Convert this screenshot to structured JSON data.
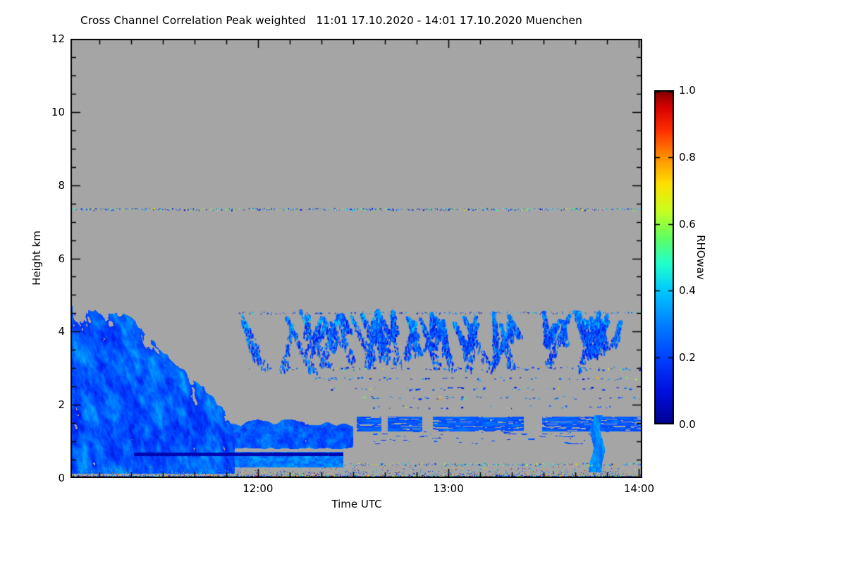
{
  "figure": {
    "background": "#ffffff",
    "axis_color": "#000000"
  },
  "chart_data": {
    "type": "heatmap",
    "title_full": "Cross Channel Correlation Peak weighted   11:01 17.10.2020 - 14:01 17.10.2020 Muenchen",
    "title_left": "Cross Channel Correlation Peak weighted",
    "title_right": "11:01 17.10.2020 - 14:01 17.10.2020 Muenchen",
    "station": "Muenchen",
    "time_start": "11:01 17.10.2020",
    "time_end": "14:01 17.10.2020",
    "xlabel": "Time UTC",
    "ylabel": "Height km",
    "colorbar_label": "RHOwav",
    "x_range_hours": [
      11.0167,
      14.0167
    ],
    "y_range_km": [
      0,
      12
    ],
    "x_ticks": [
      {
        "hour": 12,
        "label": "12:00"
      },
      {
        "hour": 13,
        "label": "13:00"
      },
      {
        "hour": 14,
        "label": "14:00"
      }
    ],
    "y_ticks": [
      0,
      2,
      4,
      6,
      8,
      10,
      12
    ],
    "colorbar_ticks": [
      "0.0",
      "0.2",
      "0.4",
      "0.6",
      "0.8",
      "1.0"
    ],
    "colorbar_range": [
      0.0,
      1.0
    ],
    "no_data_color": "#a5a5a5",
    "colormap_stops": [
      [
        0.0,
        "#00008f"
      ],
      [
        0.1,
        "#0010e0"
      ],
      [
        0.2,
        "#0040ff"
      ],
      [
        0.3,
        "#0080ff"
      ],
      [
        0.4,
        "#00c8ff"
      ],
      [
        0.48,
        "#20ffd0"
      ],
      [
        0.56,
        "#60ff60"
      ],
      [
        0.64,
        "#c8ff20"
      ],
      [
        0.72,
        "#ffe000"
      ],
      [
        0.8,
        "#ff9000"
      ],
      [
        0.88,
        "#ff3000"
      ],
      [
        0.95,
        "#d80000"
      ],
      [
        1.0,
        "#7f0000"
      ]
    ],
    "features": {
      "left_cloud": {
        "t": [
          11.02,
          11.88
        ],
        "flat_top_until": 11.3,
        "top_km": 4.55,
        "top_slope": 5.2,
        "bottom_km": 0.12,
        "value": [
          0.1,
          0.38
        ]
      },
      "mid_band": {
        "t": [
          11.55,
          12.5
        ],
        "h": [
          0.78,
          1.62
        ],
        "value": [
          0.12,
          0.36
        ]
      },
      "low_band": {
        "t": [
          11.33,
          12.45
        ],
        "h": [
          0.28,
          0.72
        ],
        "value": [
          0.18,
          0.42
        ]
      },
      "dark_line": {
        "t": [
          11.35,
          12.45
        ],
        "h": [
          0.6,
          0.7
        ],
        "value": 0.04
      },
      "right_band": {
        "t": [
          12.52,
          14.02
        ],
        "h": [
          1.28,
          1.68
        ],
        "value": [
          0.12,
          0.34
        ]
      },
      "plume": {
        "t_center": 13.78,
        "half_width": 0.028,
        "h": [
          0.15,
          1.72
        ],
        "value": [
          0.2,
          0.4
        ]
      },
      "upper_streaks": {
        "t": [
          11.85,
          14.0
        ],
        "h_top": [
          4.2,
          4.62
        ],
        "length_km": [
          0.5,
          1.6
        ],
        "count": 64,
        "value": [
          0.1,
          0.4
        ]
      },
      "speckle_lines": [
        {
          "h": 7.35,
          "t": [
            11.02,
            14.02
          ],
          "density": 0.55,
          "value": [
            0.05,
            0.75
          ]
        },
        {
          "h": 4.52,
          "t": [
            11.9,
            14.02
          ],
          "density": 0.3,
          "value": [
            0.08,
            0.5
          ]
        },
        {
          "h": 0.38,
          "t": [
            12.45,
            14.02
          ],
          "density": 0.5,
          "value": [
            0.1,
            0.8
          ]
        }
      ],
      "speckle_rows": [
        {
          "h": 3.0,
          "t": [
            11.95,
            14.02
          ],
          "density": 0.18
        },
        {
          "h": 2.72,
          "t": [
            12.3,
            14.02
          ],
          "density": 0.14
        },
        {
          "h": 2.45,
          "t": [
            12.35,
            14.02
          ],
          "density": 0.12
        },
        {
          "h": 2.2,
          "t": [
            12.55,
            14.02
          ],
          "density": 0.1
        },
        {
          "h": 1.95,
          "t": [
            12.6,
            13.9
          ],
          "density": 0.08
        }
      ],
      "surface_noise": {
        "t": [
          11.02,
          14.02
        ],
        "h": [
          0.0,
          0.3
        ],
        "density": 0.55,
        "value": [
          0.05,
          1.0
        ]
      }
    }
  }
}
